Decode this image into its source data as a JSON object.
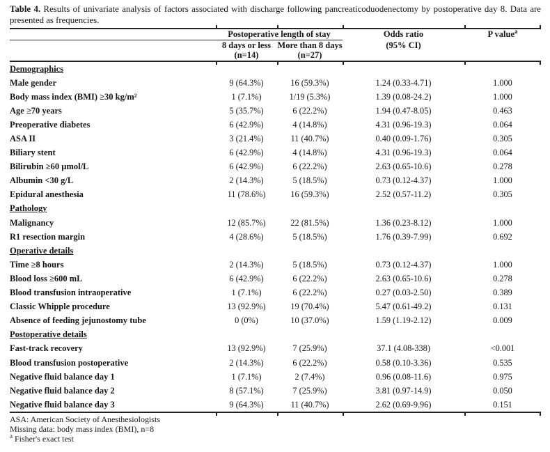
{
  "colors": {
    "text": "#161616",
    "rule": "#222222",
    "background": "#ffffff"
  },
  "title": {
    "label": "Table 4.",
    "text": "Results of univariate analysis of factors associated with discharge following pancreaticoduodenectomy by postoperative day 8. Data are presented as frequencies."
  },
  "header": {
    "group": "Postoperative length of stay",
    "col_a_line1": "8 days or less",
    "col_a_line2": "(n=14)",
    "col_b_line1": "More than 8 days",
    "col_b_line2": "(n=27)",
    "or_line1": "Odds ratio",
    "or_line2": "(95% CI)",
    "p_text": "P value",
    "p_sup": "a"
  },
  "rows": [
    {
      "type": "section",
      "label": "Demographics"
    },
    {
      "type": "data",
      "label": "Male gender",
      "c1": "9 (64.3%)",
      "c2": "16 (59.3%)",
      "or": "1.24 (0.33-4.71)",
      "p": "1.000"
    },
    {
      "type": "data",
      "label": "Body mass index (BMI) ≥30 kg/m²",
      "c1": "1 (7.1%)",
      "c2": "1/19 (5.3%)",
      "or": "1.39 (0.08-24.2)",
      "p": "1.000"
    },
    {
      "type": "data",
      "label": "Age ≥70 years",
      "c1": "5 (35.7%)",
      "c2": "6 (22.2%)",
      "or": "1.94 (0.47-8.05)",
      "p": "0.463"
    },
    {
      "type": "data",
      "label": "Preoperative diabetes",
      "c1": "6 (42.9%)",
      "c2": "4 (14.8%)",
      "or": "4.31 (0.96-19.3)",
      "p": "0.064"
    },
    {
      "type": "data",
      "label": "ASA II",
      "c1": "3 (21.4%)",
      "c2": "11 (40.7%)",
      "or": "0.40 (0.09-1.76)",
      "p": "0.305"
    },
    {
      "type": "data",
      "label": "Biliary stent",
      "c1": "6 (42.9%)",
      "c2": "4 (14.8%)",
      "or": "4.31 (0.96-19.3)",
      "p": "0.064"
    },
    {
      "type": "data",
      "label": "Bilirubin ≥60 µmol/L",
      "c1": "6 (42.9%)",
      "c2": "6 (22.2%)",
      "or": "2.63 (0.65-10.6)",
      "p": "0.278"
    },
    {
      "type": "data",
      "label": "Albumin <30 g/L",
      "c1": "2 (14.3%)",
      "c2": "5 (18.5%)",
      "or": "0.73 (0.12-4.37)",
      "p": "1.000"
    },
    {
      "type": "data",
      "label": "Epidural anesthesia",
      "c1": "11 (78.6%)",
      "c2": "16 (59.3%)",
      "or": "2.52 (0.57-11.2)",
      "p": "0.305"
    },
    {
      "type": "section",
      "label": "Pathology"
    },
    {
      "type": "data",
      "label": "Malignancy",
      "c1": "12 (85.7%)",
      "c2": "22 (81.5%)",
      "or": "1.36 (0.23-8.12)",
      "p": "1.000"
    },
    {
      "type": "data",
      "label": "R1 resection margin",
      "c1": "4 (28.6%)",
      "c2": "5 (18.5%)",
      "or": "1.76 (0.39-7.99)",
      "p": "0.692"
    },
    {
      "type": "section",
      "label": "Operative details"
    },
    {
      "type": "data",
      "label": "Time ≥8 hours",
      "c1": "2 (14.3%)",
      "c2": "5 (18.5%)",
      "or": "0.73 (0.12-4.37)",
      "p": "1.000"
    },
    {
      "type": "data",
      "label": "Blood loss ≥600 mL",
      "c1": "6 (42.9%)",
      "c2": "6 (22.2%)",
      "or": "2.63 (0.65-10.6)",
      "p": "0.278"
    },
    {
      "type": "data",
      "label": "Blood transfusion intraoperative",
      "c1": "1 (7.1%)",
      "c2": "6 (22.2%)",
      "or": "0.27 (0.03-2.50)",
      "p": "0.389"
    },
    {
      "type": "data",
      "label": "Classic Whipple procedure",
      "c1": "13 (92.9%)",
      "c2": "19 (70.4%)",
      "or": "5.47 (0.61-49.2)",
      "p": "0.131"
    },
    {
      "type": "data",
      "label": "Absence of feeding jejunostomy tube",
      "c1": "0 (0%)",
      "c2": "10 (37.0%)",
      "or": "1.59 (1.19-2.12)",
      "p": "0.009"
    },
    {
      "type": "section",
      "label": "Postoperative details"
    },
    {
      "type": "data",
      "label": "Fast-track recovery",
      "c1": "13 (92.9%)",
      "c2": "7 (25.9%)",
      "or": "37.1 (4.08-338)",
      "p": "<0.001"
    },
    {
      "type": "data",
      "label": "Blood transfusion postoperative",
      "c1": "2 (14.3%)",
      "c2": "6 (22.2%)",
      "or": "0.58 (0.10-3.36)",
      "p": "0.535"
    },
    {
      "type": "data",
      "label": "Negative fluid balance day 1",
      "c1": "1 (7.1%)",
      "c2": "2 (7.4%)",
      "or": "0.96 (0.08-11.6)",
      "p": "0.975"
    },
    {
      "type": "data",
      "label": "Negative fluid balance day 2",
      "c1": "8 (57.1%)",
      "c2": "7 (25.9%)",
      "or": "3.81 (0.97-14.9)",
      "p": "0.050"
    },
    {
      "type": "data",
      "label": "Negative fluid balance day 3",
      "c1": "9 (64.3%)",
      "c2": "11 (40.7%)",
      "or": "2.62 (0.69-9.96)",
      "p": "0.151"
    }
  ],
  "footnotes": {
    "line1": "ASA: American Society of Anesthesiologists",
    "line2": "Missing data: body mass index (BMI), n=8",
    "line3_sup": "a",
    "line3_text": "Fisher's exact test"
  }
}
